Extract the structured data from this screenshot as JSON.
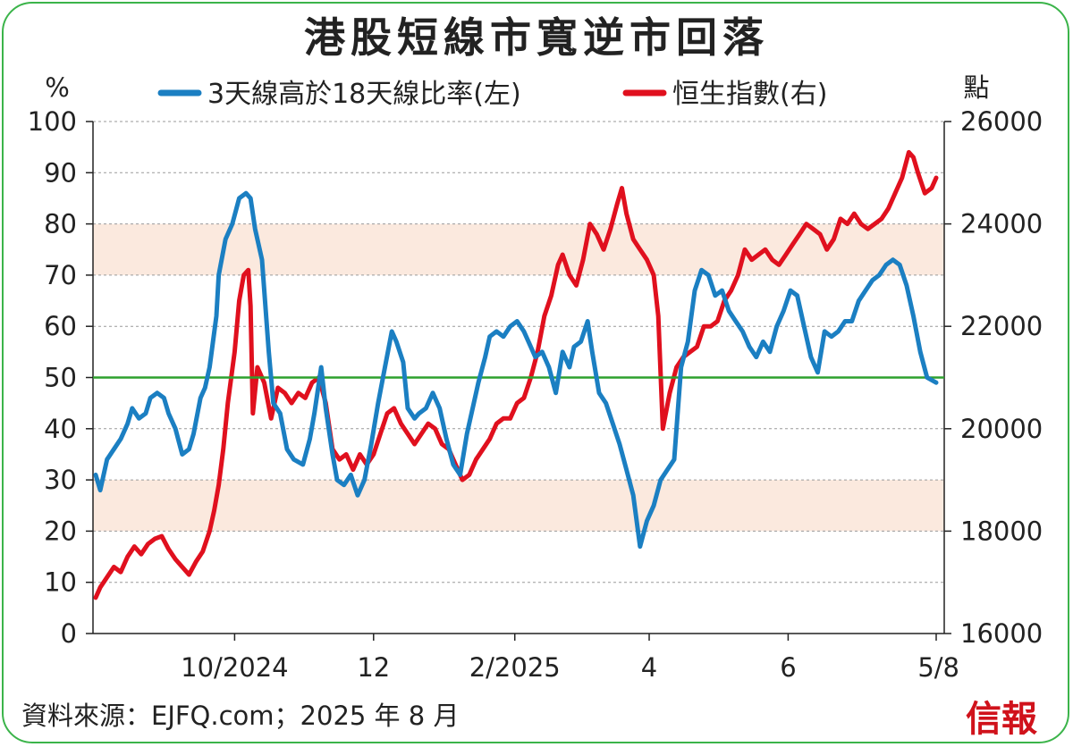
{
  "title": "港股短線市寬逆市回落",
  "source": "資料來源：EJFQ.com；2025 年 8 月",
  "logo": "信報",
  "colors": {
    "breadth": "#1b7fc2",
    "hsi": "#e0101e",
    "threshold": "#2ea12e",
    "band": "#fbe9de",
    "frame": "#3bb44a"
  },
  "chart_data": {
    "type": "line",
    "title": "港股短線市寬逆市回落",
    "left_unit": "%",
    "right_unit": "點",
    "left_axis": {
      "ylim": [
        0,
        100
      ],
      "ticks": [
        "0",
        "10",
        "20",
        "30",
        "40",
        "50",
        "60",
        "70",
        "80",
        "90",
        "100"
      ]
    },
    "right_axis": {
      "ylim": [
        16000,
        26000
      ],
      "ticks": [
        "16000",
        "18000",
        "20000",
        "22000",
        "24000",
        "26000"
      ]
    },
    "x_axis": {
      "start": "2024-08-01",
      "end": "2025-08-05",
      "ticks": [
        {
          "date": "2024-10-01",
          "label": "10/2024"
        },
        {
          "date": "2024-12-01",
          "label": "12"
        },
        {
          "date": "2025-02-01",
          "label": "2/2025"
        },
        {
          "date": "2025-04-01",
          "label": "4"
        },
        {
          "date": "2025-06-01",
          "label": "6"
        },
        {
          "date": "2025-08-05",
          "label": "5/8"
        }
      ]
    },
    "reference_line": {
      "axis": "left",
      "value": 50
    },
    "bands": [
      {
        "axis": "left",
        "from": 20,
        "to": 30
      },
      {
        "axis": "left",
        "from": 70,
        "to": 80
      }
    ],
    "grid": "horizontal dashed",
    "legend_position": "top",
    "series": [
      {
        "name": "3天線高於18天線比率(左)",
        "axis": "left",
        "points": [
          [
            "2024-08-01",
            31
          ],
          [
            "2024-08-03",
            28
          ],
          [
            "2024-08-06",
            34
          ],
          [
            "2024-08-09",
            36
          ],
          [
            "2024-08-12",
            38
          ],
          [
            "2024-08-15",
            41
          ],
          [
            "2024-08-17",
            44
          ],
          [
            "2024-08-20",
            42
          ],
          [
            "2024-08-23",
            43
          ],
          [
            "2024-08-25",
            46
          ],
          [
            "2024-08-28",
            47
          ],
          [
            "2024-08-31",
            46
          ],
          [
            "2024-09-02",
            43
          ],
          [
            "2024-09-05",
            40
          ],
          [
            "2024-09-08",
            35
          ],
          [
            "2024-09-11",
            36
          ],
          [
            "2024-09-13",
            39
          ],
          [
            "2024-09-16",
            46
          ],
          [
            "2024-09-18",
            48
          ],
          [
            "2024-09-20",
            52
          ],
          [
            "2024-09-23",
            62
          ],
          [
            "2024-09-24",
            70
          ],
          [
            "2024-09-27",
            77
          ],
          [
            "2024-09-30",
            80
          ],
          [
            "2024-10-03",
            85
          ],
          [
            "2024-10-06",
            86
          ],
          [
            "2024-10-08",
            85
          ],
          [
            "2024-10-10",
            79
          ],
          [
            "2024-10-13",
            73
          ],
          [
            "2024-10-16",
            55
          ],
          [
            "2024-10-18",
            45
          ],
          [
            "2024-10-21",
            43
          ],
          [
            "2024-10-24",
            36
          ],
          [
            "2024-10-27",
            34
          ],
          [
            "2024-10-31",
            33
          ],
          [
            "2024-11-03",
            38
          ],
          [
            "2024-11-05",
            43
          ],
          [
            "2024-11-08",
            52
          ],
          [
            "2024-11-10",
            44
          ],
          [
            "2024-11-13",
            35
          ],
          [
            "2024-11-15",
            30
          ],
          [
            "2024-11-18",
            29
          ],
          [
            "2024-11-21",
            31
          ],
          [
            "2024-11-24",
            27
          ],
          [
            "2024-11-27",
            30
          ],
          [
            "2024-11-30",
            37
          ],
          [
            "2024-12-03",
            45
          ],
          [
            "2024-12-06",
            52
          ],
          [
            "2024-12-09",
            59
          ],
          [
            "2024-12-11",
            57
          ],
          [
            "2024-12-14",
            53
          ],
          [
            "2024-12-16",
            44
          ],
          [
            "2024-12-19",
            42
          ],
          [
            "2024-12-21",
            43
          ],
          [
            "2024-12-24",
            44
          ],
          [
            "2024-12-27",
            47
          ],
          [
            "2024-12-30",
            44
          ],
          [
            "2025-01-02",
            38
          ],
          [
            "2025-01-05",
            33
          ],
          [
            "2025-01-08",
            31
          ],
          [
            "2025-01-11",
            39
          ],
          [
            "2025-01-14",
            45
          ],
          [
            "2025-01-16",
            49
          ],
          [
            "2025-01-19",
            54
          ],
          [
            "2025-01-21",
            58
          ],
          [
            "2025-01-24",
            59
          ],
          [
            "2025-01-27",
            58
          ],
          [
            "2025-01-30",
            60
          ],
          [
            "2025-02-02",
            61
          ],
          [
            "2025-02-05",
            59
          ],
          [
            "2025-02-08",
            56
          ],
          [
            "2025-02-10",
            54
          ],
          [
            "2025-02-13",
            55
          ],
          [
            "2025-02-16",
            52
          ],
          [
            "2025-02-19",
            47
          ],
          [
            "2025-02-22",
            55
          ],
          [
            "2025-02-25",
            52
          ],
          [
            "2025-02-27",
            56
          ],
          [
            "2025-03-02",
            57
          ],
          [
            "2025-03-05",
            61
          ],
          [
            "2025-03-07",
            55
          ],
          [
            "2025-03-10",
            47
          ],
          [
            "2025-03-13",
            45
          ],
          [
            "2025-03-16",
            41
          ],
          [
            "2025-03-19",
            37
          ],
          [
            "2025-03-22",
            32
          ],
          [
            "2025-03-25",
            27
          ],
          [
            "2025-03-28",
            17
          ],
          [
            "2025-03-31",
            22
          ],
          [
            "2025-04-03",
            25
          ],
          [
            "2025-04-06",
            30
          ],
          [
            "2025-04-09",
            32
          ],
          [
            "2025-04-12",
            34
          ],
          [
            "2025-04-15",
            52
          ],
          [
            "2025-04-18",
            57
          ],
          [
            "2025-04-21",
            67
          ],
          [
            "2025-04-24",
            71
          ],
          [
            "2025-04-27",
            70
          ],
          [
            "2025-04-30",
            66
          ],
          [
            "2025-05-03",
            67
          ],
          [
            "2025-05-06",
            63
          ],
          [
            "2025-05-09",
            61
          ],
          [
            "2025-05-12",
            59
          ],
          [
            "2025-05-15",
            56
          ],
          [
            "2025-05-18",
            54
          ],
          [
            "2025-05-21",
            57
          ],
          [
            "2025-05-24",
            55
          ],
          [
            "2025-05-27",
            60
          ],
          [
            "2025-05-30",
            63
          ],
          [
            "2025-06-02",
            67
          ],
          [
            "2025-06-05",
            66
          ],
          [
            "2025-06-08",
            60
          ],
          [
            "2025-06-11",
            54
          ],
          [
            "2025-06-14",
            51
          ],
          [
            "2025-06-17",
            59
          ],
          [
            "2025-06-20",
            58
          ],
          [
            "2025-06-23",
            59
          ],
          [
            "2025-06-26",
            61
          ],
          [
            "2025-06-29",
            61
          ],
          [
            "2025-07-02",
            65
          ],
          [
            "2025-07-05",
            67
          ],
          [
            "2025-07-08",
            69
          ],
          [
            "2025-07-11",
            70
          ],
          [
            "2025-07-14",
            72
          ],
          [
            "2025-07-17",
            73
          ],
          [
            "2025-07-20",
            72
          ],
          [
            "2025-07-23",
            68
          ],
          [
            "2025-07-26",
            62
          ],
          [
            "2025-07-29",
            55
          ],
          [
            "2025-08-01",
            50
          ],
          [
            "2025-08-05",
            49
          ]
        ]
      },
      {
        "name": "恒生指數(右)",
        "axis": "right",
        "points": [
          [
            "2024-08-01",
            16700
          ],
          [
            "2024-08-03",
            16900
          ],
          [
            "2024-08-06",
            17100
          ],
          [
            "2024-08-09",
            17300
          ],
          [
            "2024-08-12",
            17200
          ],
          [
            "2024-08-15",
            17500
          ],
          [
            "2024-08-18",
            17700
          ],
          [
            "2024-08-21",
            17550
          ],
          [
            "2024-08-24",
            17750
          ],
          [
            "2024-08-27",
            17850
          ],
          [
            "2024-08-30",
            17900
          ],
          [
            "2024-09-02",
            17650
          ],
          [
            "2024-09-05",
            17450
          ],
          [
            "2024-09-08",
            17300
          ],
          [
            "2024-09-11",
            17150
          ],
          [
            "2024-09-14",
            17400
          ],
          [
            "2024-09-17",
            17600
          ],
          [
            "2024-09-20",
            18000
          ],
          [
            "2024-09-22",
            18400
          ],
          [
            "2024-09-24",
            18900
          ],
          [
            "2024-09-26",
            19600
          ],
          [
            "2024-09-28",
            20500
          ],
          [
            "2024-10-01",
            21500
          ],
          [
            "2024-10-03",
            22500
          ],
          [
            "2024-10-05",
            23000
          ],
          [
            "2024-10-07",
            23100
          ],
          [
            "2024-10-08",
            22400
          ],
          [
            "2024-10-09",
            20300
          ],
          [
            "2024-10-11",
            21200
          ],
          [
            "2024-10-14",
            20900
          ],
          [
            "2024-10-17",
            20200
          ],
          [
            "2024-10-20",
            20800
          ],
          [
            "2024-10-23",
            20700
          ],
          [
            "2024-10-26",
            20500
          ],
          [
            "2024-10-29",
            20700
          ],
          [
            "2024-11-01",
            20600
          ],
          [
            "2024-11-04",
            20900
          ],
          [
            "2024-11-07",
            21000
          ],
          [
            "2024-11-10",
            20500
          ],
          [
            "2024-11-13",
            19600
          ],
          [
            "2024-11-16",
            19400
          ],
          [
            "2024-11-19",
            19500
          ],
          [
            "2024-11-22",
            19200
          ],
          [
            "2024-11-25",
            19500
          ],
          [
            "2024-11-28",
            19300
          ],
          [
            "2024-12-01",
            19500
          ],
          [
            "2024-12-04",
            19900
          ],
          [
            "2024-12-07",
            20300
          ],
          [
            "2024-12-10",
            20400
          ],
          [
            "2024-12-13",
            20100
          ],
          [
            "2024-12-16",
            19900
          ],
          [
            "2024-12-19",
            19700
          ],
          [
            "2024-12-22",
            19900
          ],
          [
            "2024-12-25",
            20100
          ],
          [
            "2024-12-28",
            20000
          ],
          [
            "2024-12-31",
            19700
          ],
          [
            "2025-01-03",
            19600
          ],
          [
            "2025-01-06",
            19300
          ],
          [
            "2025-01-09",
            19000
          ],
          [
            "2025-01-12",
            19100
          ],
          [
            "2025-01-15",
            19400
          ],
          [
            "2025-01-18",
            19600
          ],
          [
            "2025-01-21",
            19800
          ],
          [
            "2025-01-24",
            20100
          ],
          [
            "2025-01-27",
            20200
          ],
          [
            "2025-01-30",
            20200
          ],
          [
            "2025-02-02",
            20500
          ],
          [
            "2025-02-05",
            20600
          ],
          [
            "2025-02-08",
            21000
          ],
          [
            "2025-02-11",
            21500
          ],
          [
            "2025-02-14",
            22200
          ],
          [
            "2025-02-17",
            22600
          ],
          [
            "2025-02-20",
            23200
          ],
          [
            "2025-02-22",
            23400
          ],
          [
            "2025-02-25",
            23000
          ],
          [
            "2025-02-28",
            22800
          ],
          [
            "2025-03-03",
            23300
          ],
          [
            "2025-03-06",
            24000
          ],
          [
            "2025-03-09",
            23800
          ],
          [
            "2025-03-12",
            23500
          ],
          [
            "2025-03-15",
            23900
          ],
          [
            "2025-03-18",
            24400
          ],
          [
            "2025-03-20",
            24700
          ],
          [
            "2025-03-22",
            24200
          ],
          [
            "2025-03-25",
            23700
          ],
          [
            "2025-03-28",
            23500
          ],
          [
            "2025-03-31",
            23300
          ],
          [
            "2025-04-03",
            23000
          ],
          [
            "2025-04-05",
            22200
          ],
          [
            "2025-04-07",
            20000
          ],
          [
            "2025-04-10",
            20700
          ],
          [
            "2025-04-13",
            21200
          ],
          [
            "2025-04-16",
            21400
          ],
          [
            "2025-04-19",
            21500
          ],
          [
            "2025-04-22",
            21600
          ],
          [
            "2025-04-25",
            22000
          ],
          [
            "2025-04-28",
            22000
          ],
          [
            "2025-05-01",
            22100
          ],
          [
            "2025-05-04",
            22500
          ],
          [
            "2025-05-07",
            22700
          ],
          [
            "2025-05-10",
            23000
          ],
          [
            "2025-05-13",
            23500
          ],
          [
            "2025-05-16",
            23300
          ],
          [
            "2025-05-19",
            23400
          ],
          [
            "2025-05-22",
            23500
          ],
          [
            "2025-05-25",
            23300
          ],
          [
            "2025-05-28",
            23200
          ],
          [
            "2025-05-31",
            23400
          ],
          [
            "2025-06-03",
            23600
          ],
          [
            "2025-06-06",
            23800
          ],
          [
            "2025-06-09",
            24000
          ],
          [
            "2025-06-12",
            23900
          ],
          [
            "2025-06-15",
            23800
          ],
          [
            "2025-06-18",
            23500
          ],
          [
            "2025-06-21",
            23700
          ],
          [
            "2025-06-24",
            24100
          ],
          [
            "2025-06-27",
            24000
          ],
          [
            "2025-06-30",
            24200
          ],
          [
            "2025-07-03",
            24000
          ],
          [
            "2025-07-06",
            23900
          ],
          [
            "2025-07-09",
            24000
          ],
          [
            "2025-07-12",
            24100
          ],
          [
            "2025-07-15",
            24300
          ],
          [
            "2025-07-18",
            24600
          ],
          [
            "2025-07-21",
            24900
          ],
          [
            "2025-07-24",
            25400
          ],
          [
            "2025-07-26",
            25300
          ],
          [
            "2025-07-28",
            25000
          ],
          [
            "2025-07-31",
            24600
          ],
          [
            "2025-08-03",
            24700
          ],
          [
            "2025-08-05",
            24900
          ]
        ]
      }
    ]
  }
}
